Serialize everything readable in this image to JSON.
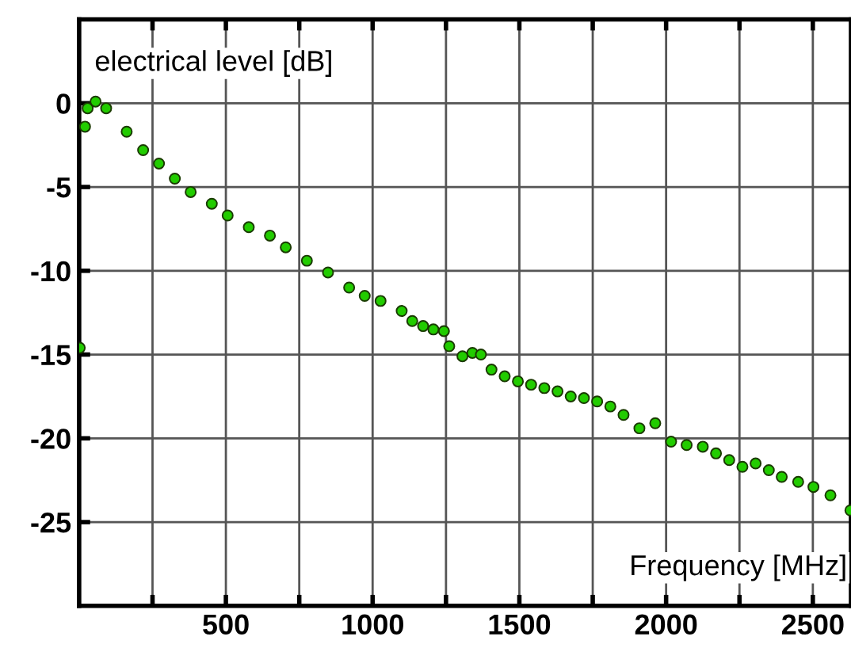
{
  "chart_data": {
    "type": "scatter",
    "xlabel": "Frequency [MHz]",
    "ylabel": "electrical level [dB]",
    "xlim": [
      0,
      2630
    ],
    "ylim": [
      -30,
      5
    ],
    "xticks": [
      {
        "value": 250,
        "label": null
      },
      500,
      {
        "value": 750,
        "label": null
      },
      1000,
      {
        "value": 1250,
        "label": null
      },
      1500,
      {
        "value": 1750,
        "label": null
      },
      2000,
      {
        "value": 2250,
        "label": null
      },
      2500
    ],
    "yticks": [
      -25,
      -20,
      -15,
      -10,
      -5,
      0
    ],
    "grid": true,
    "marker": "circle",
    "series": [
      {
        "color": "#22cc00",
        "x": [
          2,
          20,
          29,
          56,
          92,
          162,
          218,
          272,
          326,
          380,
          452,
          506,
          578,
          650,
          704,
          776,
          848,
          920,
          973,
          1027,
          1099,
          1135,
          1172,
          1207,
          1243,
          1261,
          1306,
          1340,
          1369,
          1405,
          1450,
          1495,
          1540,
          1585,
          1630,
          1675,
          1720,
          1765,
          1810,
          1855,
          1909,
          1963,
          2017,
          2070,
          2125,
          2170,
          2215,
          2260,
          2305,
          2350,
          2394,
          2450,
          2502,
          2560,
          2628
        ],
        "values": [
          -14.6,
          -1.4,
          -0.3,
          0.1,
          -0.3,
          -1.7,
          -2.8,
          -3.6,
          -4.5,
          -5.3,
          -6.0,
          -6.7,
          -7.4,
          -7.9,
          -8.6,
          -9.4,
          -10.1,
          -11.0,
          -11.5,
          -11.8,
          -12.4,
          -13.0,
          -13.3,
          -13.5,
          -13.6,
          -14.5,
          -15.1,
          -14.9,
          -15.0,
          -15.9,
          -16.3,
          -16.6,
          -16.8,
          -17.0,
          -17.2,
          -17.5,
          -17.6,
          -17.8,
          -18.1,
          -18.6,
          -19.4,
          -19.1,
          -20.2,
          -20.4,
          -20.5,
          -20.9,
          -21.3,
          -21.7,
          -21.5,
          -21.9,
          -22.3,
          -22.6,
          -22.9,
          -23.4,
          -24.3
        ]
      }
    ]
  }
}
